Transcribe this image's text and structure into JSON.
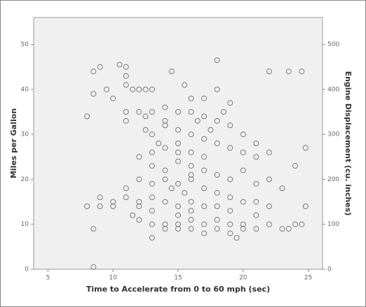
{
  "chart_data": {
    "type": "scatter",
    "x_label": "Time to Accelerate from 0 to 60 mph (sec)",
    "y_label": "Miles per Gallon",
    "y2_label": "Engine Displacement (cu. inches)",
    "xlim": [
      3.9,
      26.1
    ],
    "xticks": [
      5,
      10,
      15,
      20,
      25
    ],
    "ylim": [
      0,
      56
    ],
    "yticks": [
      0,
      10,
      20,
      30,
      40,
      50
    ],
    "y2lim": [
      0,
      560
    ],
    "y2ticks": [
      0,
      100,
      200,
      300,
      400,
      500
    ],
    "series": [
      {
        "color": "#7a7a7a",
        "x": [
          8.5,
          8.5,
          9,
          9.5,
          10,
          10.5,
          11,
          11,
          11,
          11.5,
          12,
          12.5,
          13,
          8,
          11,
          11,
          12,
          13,
          14,
          14,
          15,
          16,
          17,
          18,
          19,
          16,
          17,
          18,
          19,
          20,
          21,
          22,
          21,
          24,
          24.8,
          22,
          23.5,
          24.5,
          18,
          14.5,
          15.5,
          12.5,
          13,
          14,
          15,
          16,
          17,
          18,
          19,
          20,
          14,
          15,
          16,
          17,
          13,
          12,
          13,
          14,
          15,
          16,
          17,
          18,
          19,
          20,
          21,
          22,
          23,
          12,
          13,
          14,
          15,
          16,
          17,
          18,
          19,
          20,
          21,
          22,
          11,
          11,
          12,
          13,
          14,
          15,
          16,
          17,
          18,
          19,
          9,
          9,
          10,
          10,
          8,
          8.5,
          12,
          13,
          14,
          14,
          15,
          15,
          16,
          16,
          17,
          17,
          18,
          18,
          19,
          19,
          20,
          20,
          21,
          22,
          23,
          23.5,
          24,
          24.5,
          24.8,
          13,
          19.5,
          8.5,
          15,
          16,
          15.5,
          14.5,
          13.5,
          12.5,
          16.5,
          17.5,
          18.5,
          15,
          16,
          13,
          12,
          11.5,
          21
        ],
        "values": [
          44,
          39,
          45,
          40,
          38,
          45.5,
          45,
          43,
          41,
          40,
          40,
          40,
          40,
          34,
          35,
          33,
          35,
          35,
          36,
          33,
          35,
          38,
          38,
          40,
          37,
          35,
          34,
          33,
          32,
          30,
          28,
          26,
          25,
          23,
          27,
          44,
          44,
          44,
          46.5,
          44,
          41,
          31,
          30,
          32,
          31,
          30,
          29,
          28,
          27,
          26,
          27,
          28,
          26,
          25,
          26,
          25,
          23,
          22,
          24,
          23,
          22,
          21,
          20,
          22,
          19,
          20,
          18,
          20,
          19,
          20,
          19,
          20,
          18,
          17,
          16,
          15,
          15,
          14,
          18,
          16,
          15,
          16,
          15,
          14,
          15,
          14,
          14,
          13,
          16,
          14,
          15,
          14,
          14,
          9,
          11,
          10,
          10,
          9,
          9,
          10,
          9,
          11,
          10,
          8,
          9,
          11,
          8,
          10,
          9,
          10,
          9,
          10,
          9,
          9,
          10,
          10,
          14,
          7,
          7,
          0.5,
          12,
          13,
          17,
          18,
          28,
          34,
          33,
          31,
          35,
          26,
          21,
          13,
          14,
          12,
          12
        ]
      }
    ]
  }
}
